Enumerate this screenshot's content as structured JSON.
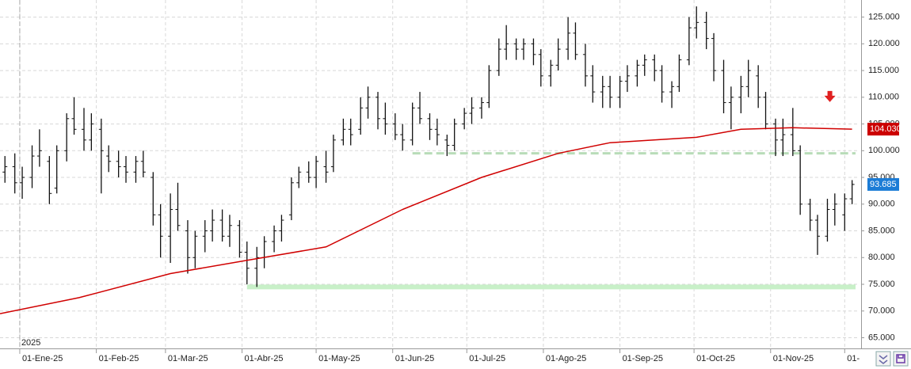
{
  "chart_data": {
    "type": "ohlc",
    "year_label": "2025",
    "xlim": [
      "2024-12-24",
      "2025-12-07"
    ],
    "ylim": [
      63,
      128.2
    ],
    "grid": true,
    "xticks": [
      {
        "value": "2025-01-01",
        "label": "01-Ene-25"
      },
      {
        "value": "2025-02-01",
        "label": "01-Feb-25"
      },
      {
        "value": "2025-03-01",
        "label": "01-Mar-25"
      },
      {
        "value": "2025-04-01",
        "label": "01-Abr-25"
      },
      {
        "value": "2025-05-01",
        "label": "01-May-25"
      },
      {
        "value": "2025-06-01",
        "label": "01-Jun-25"
      },
      {
        "value": "2025-07-01",
        "label": "01-Jul-25"
      },
      {
        "value": "2025-08-01",
        "label": "01-Ago-25"
      },
      {
        "value": "2025-09-01",
        "label": "01-Sep-25"
      },
      {
        "value": "2025-10-01",
        "label": "01-Oct-25"
      },
      {
        "value": "2025-11-01",
        "label": "01-Nov-25"
      },
      {
        "value": "2025-12-01",
        "label": "01-"
      }
    ],
    "yticks": [
      {
        "value": 65,
        "label": "65.000"
      },
      {
        "value": 70,
        "label": "70.000"
      },
      {
        "value": 75,
        "label": "75.000"
      },
      {
        "value": 80,
        "label": "80.000"
      },
      {
        "value": 85,
        "label": "85.000"
      },
      {
        "value": 90,
        "label": "90.000"
      },
      {
        "value": 95,
        "label": "95.000"
      },
      {
        "value": 100,
        "label": "100.000"
      },
      {
        "value": 105,
        "label": "105.000"
      },
      {
        "value": 110,
        "label": "110.000"
      },
      {
        "value": 115,
        "label": "115.000"
      },
      {
        "value": 120,
        "label": "120.000"
      },
      {
        "value": 125,
        "label": "125.000"
      }
    ],
    "ohlc": {
      "color": "#111111",
      "x": [
        "2024-12-26",
        "2024-12-30",
        "2025-01-02",
        "2025-01-06",
        "2025-01-09",
        "2025-01-13",
        "2025-01-16",
        "2025-01-20",
        "2025-01-23",
        "2025-01-27",
        "2025-01-30",
        "2025-02-03",
        "2025-02-06",
        "2025-02-10",
        "2025-02-13",
        "2025-02-17",
        "2025-02-20",
        "2025-02-24",
        "2025-02-27",
        "2025-03-03",
        "2025-03-06",
        "2025-03-10",
        "2025-03-13",
        "2025-03-17",
        "2025-03-20",
        "2025-03-24",
        "2025-03-27",
        "2025-03-31",
        "2025-04-03",
        "2025-04-07",
        "2025-04-10",
        "2025-04-14",
        "2025-04-17",
        "2025-04-21",
        "2025-04-24",
        "2025-04-28",
        "2025-05-01",
        "2025-05-05",
        "2025-05-08",
        "2025-05-12",
        "2025-05-15",
        "2025-05-19",
        "2025-05-22",
        "2025-05-26",
        "2025-05-29",
        "2025-06-02",
        "2025-06-05",
        "2025-06-09",
        "2025-06-12",
        "2025-06-16",
        "2025-06-19",
        "2025-06-23",
        "2025-06-26",
        "2025-06-30",
        "2025-07-03",
        "2025-07-07",
        "2025-07-10",
        "2025-07-14",
        "2025-07-17",
        "2025-07-21",
        "2025-07-24",
        "2025-07-28",
        "2025-07-31",
        "2025-08-04",
        "2025-08-07",
        "2025-08-11",
        "2025-08-14",
        "2025-08-18",
        "2025-08-21",
        "2025-08-25",
        "2025-08-28",
        "2025-09-01",
        "2025-09-04",
        "2025-09-08",
        "2025-09-11",
        "2025-09-15",
        "2025-09-18",
        "2025-09-22",
        "2025-09-25",
        "2025-09-29",
        "2025-10-02",
        "2025-10-06",
        "2025-10-09",
        "2025-10-13",
        "2025-10-16",
        "2025-10-20",
        "2025-10-23",
        "2025-10-27",
        "2025-10-30",
        "2025-11-03",
        "2025-11-06",
        "2025-11-10",
        "2025-11-13",
        "2025-11-17",
        "2025-11-20",
        "2025-11-24",
        "2025-11-27",
        "2025-12-01",
        "2025-12-04"
      ],
      "open": [
        96,
        97,
        94,
        95,
        99,
        98,
        93,
        100,
        106,
        104,
        102,
        104,
        99,
        98,
        97,
        96,
        98,
        95,
        88,
        84,
        89,
        85,
        80,
        84,
        85,
        87,
        84,
        86,
        81,
        78,
        80,
        83,
        85,
        88,
        94,
        96,
        95,
        97,
        97,
        102,
        104,
        104,
        108,
        110,
        106,
        105,
        103,
        102,
        108,
        106,
        104,
        102,
        101,
        105,
        107,
        108,
        109,
        115,
        119,
        120,
        119,
        120,
        118,
        114,
        116,
        119,
        122,
        118,
        114,
        111,
        112,
        110,
        113,
        114,
        116,
        117,
        115,
        111,
        112,
        117,
        123,
        124,
        121,
        115,
        109,
        110,
        112,
        114,
        110,
        105,
        102,
        103,
        100,
        90,
        87,
        84,
        89,
        88,
        91
      ],
      "high": [
        99,
        99.5,
        97,
        101,
        104,
        99,
        101,
        107,
        110,
        108,
        107,
        106,
        101,
        100,
        99,
        99,
        100,
        96,
        90,
        92,
        94,
        87,
        85,
        87,
        89,
        89,
        88,
        87,
        83,
        82,
        84,
        86,
        88,
        95,
        97,
        98,
        99,
        100,
        103,
        106,
        106,
        110,
        112,
        111,
        109,
        107,
        105,
        109,
        111,
        107,
        106,
        103,
        106,
        108,
        110,
        110,
        116,
        121,
        123.5,
        121,
        121,
        121,
        119,
        117,
        121,
        125,
        124,
        120,
        116,
        114,
        114,
        114,
        116,
        117,
        118,
        118,
        116,
        113,
        118,
        125,
        127,
        126,
        122,
        117,
        112,
        114,
        117,
        116,
        111,
        106,
        106,
        108,
        101,
        91,
        88,
        91,
        92,
        92,
        94.5
      ],
      "low": [
        94,
        92,
        91,
        93,
        97,
        90,
        92,
        98,
        103,
        100,
        100,
        92,
        96,
        95,
        94,
        94,
        95,
        86,
        80,
        79,
        85,
        77,
        78,
        81,
        83,
        83,
        82,
        80,
        75,
        74.5,
        78,
        81,
        83,
        87,
        93,
        94,
        93,
        94,
        96,
        101,
        101,
        103,
        106,
        104,
        103,
        102,
        100,
        101,
        105,
        102,
        101,
        99,
        100,
        104,
        105,
        106,
        108,
        114,
        117,
        117,
        117,
        116,
        112,
        112,
        115,
        117,
        117,
        112,
        109,
        108,
        108,
        108,
        111,
        112,
        114,
        113,
        109,
        108,
        111,
        116,
        121,
        119,
        113,
        107,
        104,
        107,
        110,
        108,
        104,
        99,
        99,
        99,
        88,
        85,
        80.5,
        83,
        86,
        85,
        90
      ],
      "close": [
        97,
        94,
        95,
        99,
        100,
        92,
        100,
        106,
        104,
        102,
        105,
        100,
        98,
        97,
        96,
        98,
        96,
        88,
        84,
        89,
        86,
        80,
        84,
        85,
        87,
        84,
        86,
        81,
        78,
        80,
        83,
        85,
        87,
        94,
        96,
        95,
        98,
        96,
        102,
        104,
        103,
        108,
        110,
        106,
        105,
        103,
        102,
        108,
        106,
        104,
        103,
        101,
        105,
        107,
        108,
        109,
        115,
        119,
        120,
        119,
        120,
        118,
        114,
        116,
        119,
        122,
        118,
        114,
        111,
        112,
        110,
        113,
        114,
        116,
        117,
        115,
        111,
        112,
        117,
        123,
        124,
        121,
        115,
        109,
        110,
        112,
        115,
        110,
        105,
        102,
        103,
        100,
        90,
        87,
        84,
        89,
        90,
        91,
        93.685
      ]
    },
    "moving_average": {
      "color": "#d00000",
      "x": [
        "2024-12-24",
        "2025-01-25",
        "2025-03-03",
        "2025-04-03",
        "2025-05-05",
        "2025-06-05",
        "2025-07-07",
        "2025-08-07",
        "2025-08-28",
        "2025-10-02",
        "2025-10-20",
        "2025-11-10",
        "2025-12-04"
      ],
      "values": [
        69.5,
        72.5,
        77,
        79.5,
        82,
        89,
        95,
        99.5,
        101.5,
        102.5,
        104,
        104.3,
        104.03
      ]
    },
    "hlines": [
      {
        "value": 99.5,
        "from": "2025-06-09",
        "color": "#b8dcb8",
        "style": "dashed"
      },
      {
        "value": 74.5,
        "from": "2025-04-03",
        "color": "#c8f0c8",
        "style": "band"
      }
    ],
    "arrow": {
      "x": "2025-11-25",
      "value": 110,
      "color": "#e02020"
    },
    "price_labels": [
      {
        "value": 104.03,
        "label": "104.030",
        "color": "#cc0000"
      },
      {
        "value": 93.685,
        "label": "93.685",
        "color": "#1c7cd6"
      }
    ]
  }
}
